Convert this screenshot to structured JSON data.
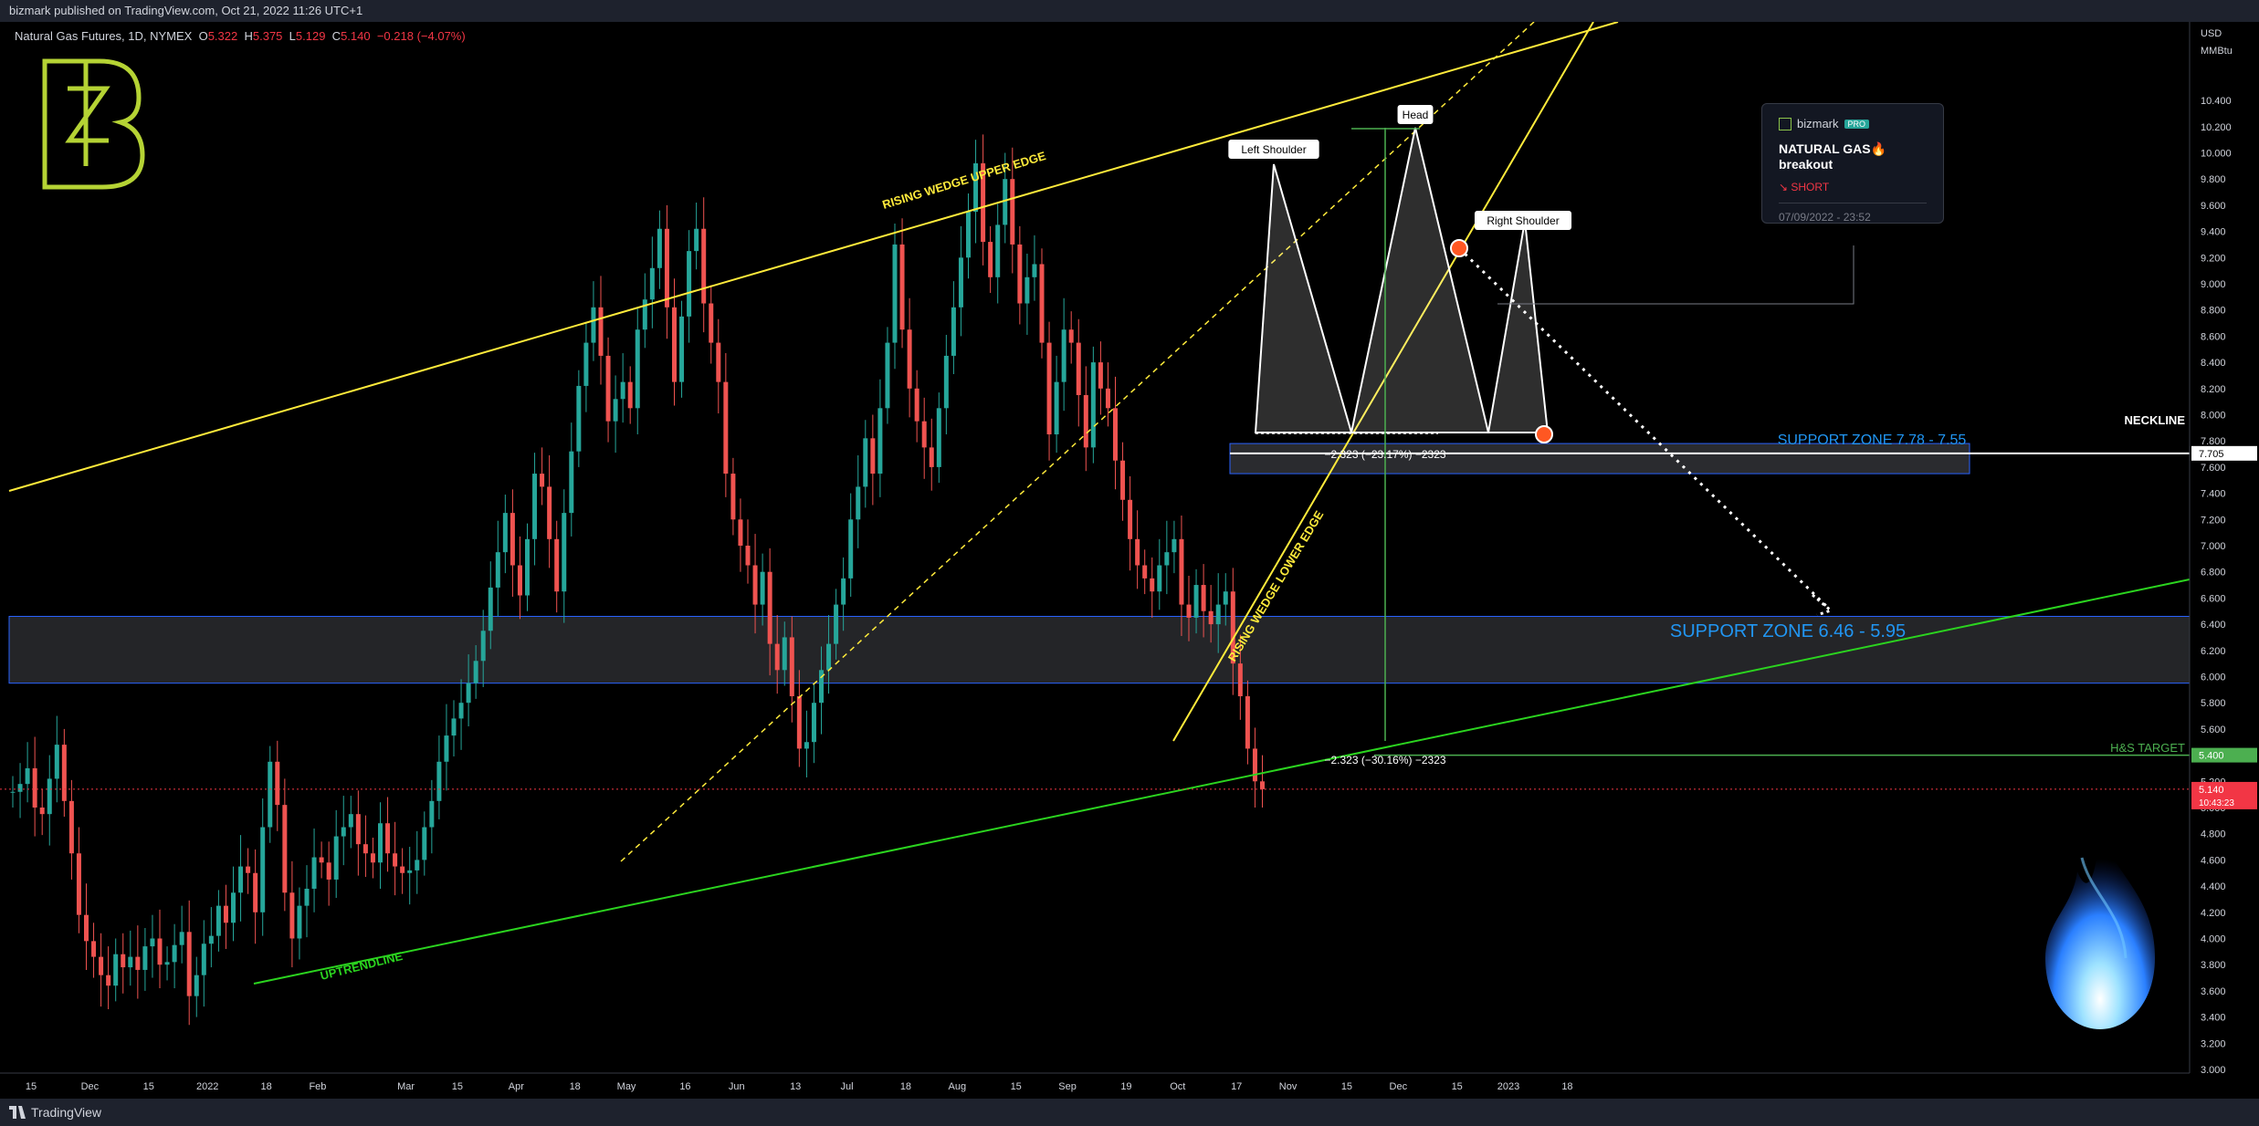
{
  "header": {
    "published": "bizmark published on TradingView.com, Oct 21, 2022 11:26 UTC+1"
  },
  "footer": {
    "brand": "TradingView"
  },
  "legend": {
    "symbol": "Natural Gas Futures, 1D, NYMEX",
    "o_label": "O",
    "o_value": "5.322",
    "h_label": "H",
    "h_value": "5.375",
    "l_label": "L",
    "l_value": "5.129",
    "c_label": "C",
    "c_value": "5.140",
    "change": "−0.218 (−4.07%)"
  },
  "idea_card": {
    "author": "bizmark",
    "badge": "PRO",
    "title": "NATURAL GAS🔥 breakout",
    "direction": "↘ SHORT",
    "date": "07/09/2022 - 23:52"
  },
  "colors": {
    "up": "#26a69a",
    "down": "#ef5350",
    "wedge": "#ffeb3b",
    "uptrend": "#2bd41f",
    "zone": "#2962ff",
    "zone_text": "#2196f3",
    "target": "#4caf50",
    "price": "#f23645"
  },
  "chart_data": {
    "type": "candlestick",
    "currency": "USD",
    "unit": "MMBtu",
    "ylim": [
      3.0,
      11.0
    ],
    "y_ticks": [
      "3.000",
      "3.200",
      "3.400",
      "3.600",
      "3.800",
      "4.000",
      "4.200",
      "4.400",
      "4.600",
      "4.800",
      "5.000",
      "5.200",
      "5.400",
      "5.600",
      "5.800",
      "6.000",
      "6.200",
      "6.400",
      "6.600",
      "6.800",
      "7.000",
      "7.200",
      "7.400",
      "7.600",
      "7.800",
      "8.000",
      "8.200",
      "8.400",
      "8.600",
      "8.800",
      "9.000",
      "9.200",
      "9.400",
      "9.600",
      "9.800",
      "10.000",
      "10.200",
      "10.400"
    ],
    "x_ticks": [
      "15",
      "Dec",
      "15",
      "2022",
      "18",
      "Feb",
      "Mar",
      "15",
      "Apr",
      "18",
      "May",
      "16",
      "Jun",
      "13",
      "Jul",
      "18",
      "Aug",
      "15",
      "Sep",
      "19",
      "Oct",
      "17",
      "Nov",
      "15",
      "Dec",
      "15",
      "2023",
      "18"
    ],
    "x_tick_index": [
      0,
      8,
      16,
      24,
      32,
      39,
      51,
      58,
      66,
      74,
      81,
      89,
      96,
      104,
      111,
      119,
      126,
      134,
      141,
      149,
      156,
      164,
      171,
      179,
      186,
      194,
      201,
      209
    ],
    "price_labels": {
      "neckline": "7.705",
      "target": "5.400",
      "last": "5.140",
      "countdown": "10:43:23"
    },
    "candles_close": [
      5.12,
      5.18,
      5.3,
      5.0,
      4.95,
      5.22,
      5.48,
      5.05,
      4.65,
      4.18,
      3.98,
      3.86,
      3.72,
      3.64,
      3.88,
      3.78,
      3.86,
      3.76,
      3.94,
      4.0,
      3.8,
      3.82,
      3.95,
      4.05,
      3.56,
      3.72,
      3.96,
      4.02,
      4.25,
      4.12,
      4.35,
      4.55,
      4.5,
      4.2,
      4.85,
      5.35,
      5.02,
      4.35,
      4.0,
      4.25,
      4.38,
      4.62,
      4.58,
      4.45,
      4.78,
      4.85,
      4.95,
      4.72,
      4.65,
      4.58,
      4.88,
      4.65,
      4.55,
      4.5,
      4.52,
      4.6,
      4.85,
      5.05,
      5.35,
      5.55,
      5.68,
      5.8,
      5.95,
      6.12,
      6.35,
      6.68,
      6.95,
      7.25,
      6.85,
      6.62,
      7.05,
      7.55,
      7.45,
      7.05,
      6.65,
      7.25,
      7.72,
      8.22,
      8.55,
      8.82,
      8.45,
      7.95,
      8.12,
      8.25,
      8.05,
      8.65,
      8.88,
      9.12,
      9.42,
      8.82,
      8.25,
      8.75,
      9.25,
      9.42,
      8.85,
      8.55,
      8.25,
      7.55,
      7.2,
      7.0,
      6.85,
      6.55,
      6.8,
      6.25,
      6.05,
      6.3,
      5.85,
      5.45,
      5.5,
      5.8,
      6.05,
      6.25,
      6.55,
      6.75,
      7.2,
      7.45,
      7.82,
      7.55,
      8.05,
      8.55,
      9.3,
      8.65,
      8.2,
      7.95,
      7.75,
      7.6,
      8.05,
      8.45,
      8.82,
      9.2,
      9.55,
      9.92,
      9.32,
      9.05,
      9.45,
      9.8,
      9.3,
      8.85,
      9.05,
      9.15,
      8.55,
      7.85,
      8.25,
      8.65,
      8.55,
      8.15,
      7.75,
      8.4,
      8.2,
      8.05,
      7.65,
      7.35,
      7.05,
      6.85,
      6.75,
      6.65,
      6.85,
      6.95,
      7.05,
      6.55,
      6.45,
      6.7,
      6.5,
      6.4,
      6.55,
      6.65,
      6.1,
      5.85,
      5.45,
      5.2,
      5.14
    ],
    "annotations": [
      "RISING WEDGE UPPER EDGE",
      "RISING WEDGE LOWER EDGE",
      "UPTRENDLINE",
      "Left Shoulder",
      "Head",
      "Right Shoulder",
      "NECKLINE",
      "SUPPORT ZONE 7.78 - 7.55",
      "SUPPORT ZONE 6.46 - 5.95",
      "H&S TARGET",
      "−2.323 (−23.17%) −2323",
      "−2.323 (−30.16%) −2323"
    ]
  }
}
